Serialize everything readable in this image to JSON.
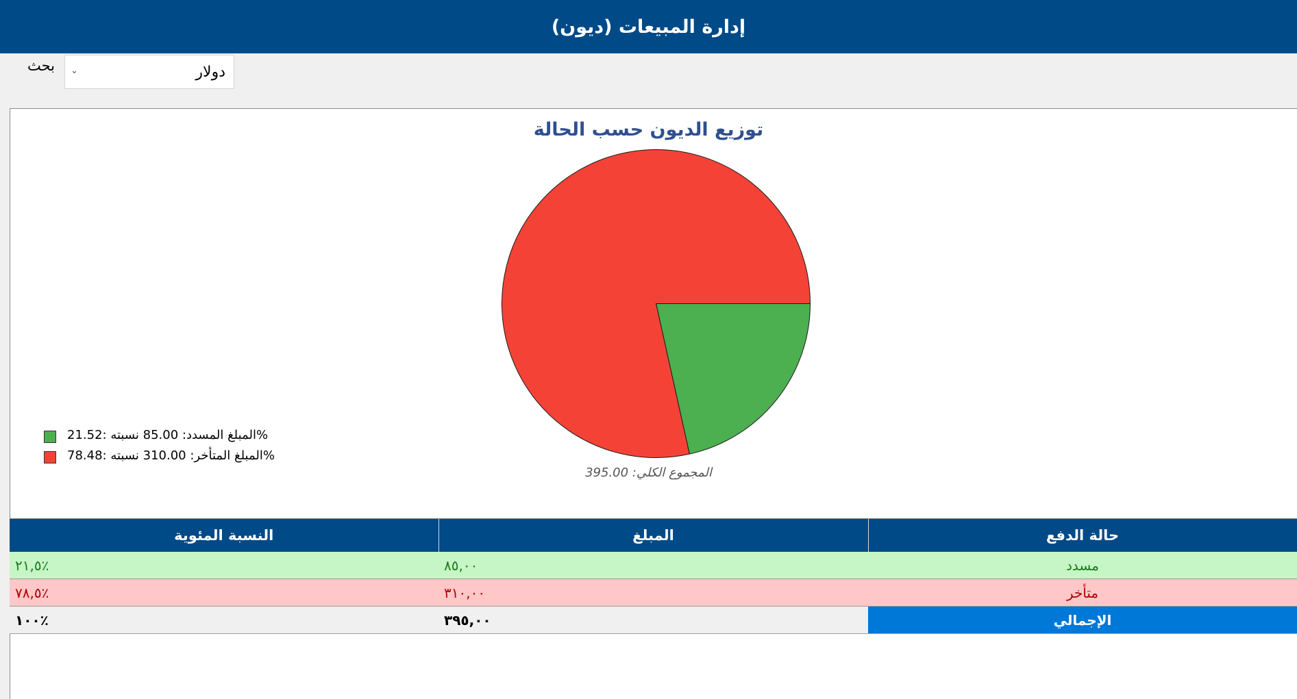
{
  "window": {
    "title": "إدارة المبيعات (ديون)"
  },
  "toolbar": {
    "search_label": "بحث",
    "currency_value": "دولار"
  },
  "chart": {
    "title": "توزيع الديون حسب الحالة",
    "total_caption": "المجموع الكلي: 395.00",
    "legend": [
      {
        "text": "المبلغ المسدد: 85.00  نسبته :21.52%",
        "color": "#4caf50"
      },
      {
        "text": "المبلغ المتأخر: 310.00  نسبته :78.48%",
        "color": "#f44336"
      }
    ]
  },
  "chart_data": {
    "type": "pie",
    "title": "توزيع الديون حسب الحالة",
    "slices": [
      {
        "label": "المبلغ المسدد",
        "value": 85.0,
        "percent": 21.52,
        "color": "#4caf50"
      },
      {
        "label": "المبلغ المتأخر",
        "value": 310.0,
        "percent": 78.48,
        "color": "#f44336"
      }
    ],
    "total": 395.0
  },
  "table": {
    "headers": {
      "status": "حالة الدفع",
      "amount": "المبلغ",
      "percent": "النسبة المئوية"
    },
    "rows": [
      {
        "status": "مسدد",
        "amount": "٨٥,٠٠",
        "percent": "٢١,٥٪"
      },
      {
        "status": "متأخر",
        "amount": "٣١٠,٠٠",
        "percent": "٧٨,٥٪"
      }
    ],
    "total": {
      "status": "الإجمالي",
      "amount": "٣٩٥,٠٠",
      "percent": "١٠٠٪"
    }
  }
}
